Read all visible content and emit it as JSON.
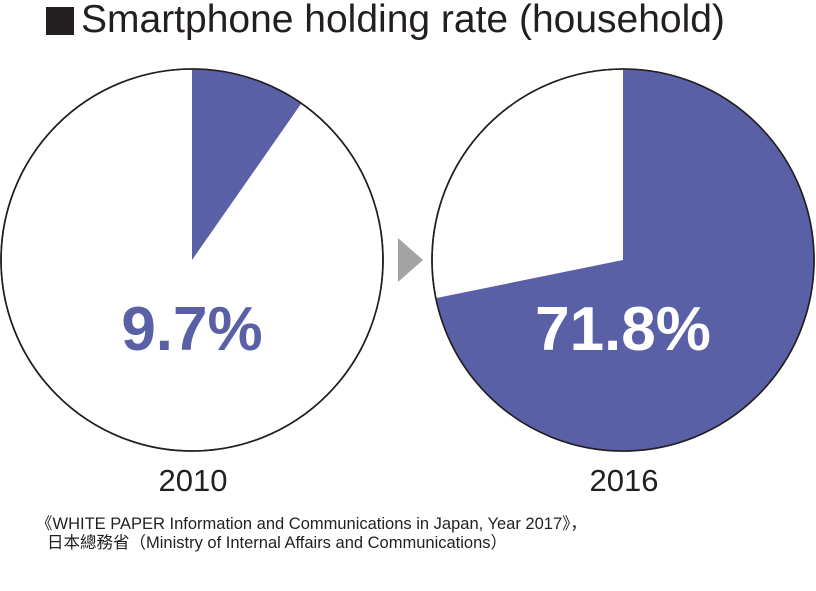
{
  "title": "Smartphone holding rate (household)",
  "chart_data": [
    {
      "type": "pie",
      "year": "2010",
      "value": 9.7,
      "label": "9.7%"
    },
    {
      "type": "pie",
      "year": "2016",
      "value": 71.8,
      "label": "71.8%"
    }
  ],
  "colors": {
    "slice": "#5960a5",
    "arrow": "#a3a3a3"
  },
  "source": {
    "line1": "《WHITE PAPER Information and Communications in   Japan, Year 2017》，",
    "line2": "日本總務省（Ministry of Internal Affairs and Communications）"
  }
}
